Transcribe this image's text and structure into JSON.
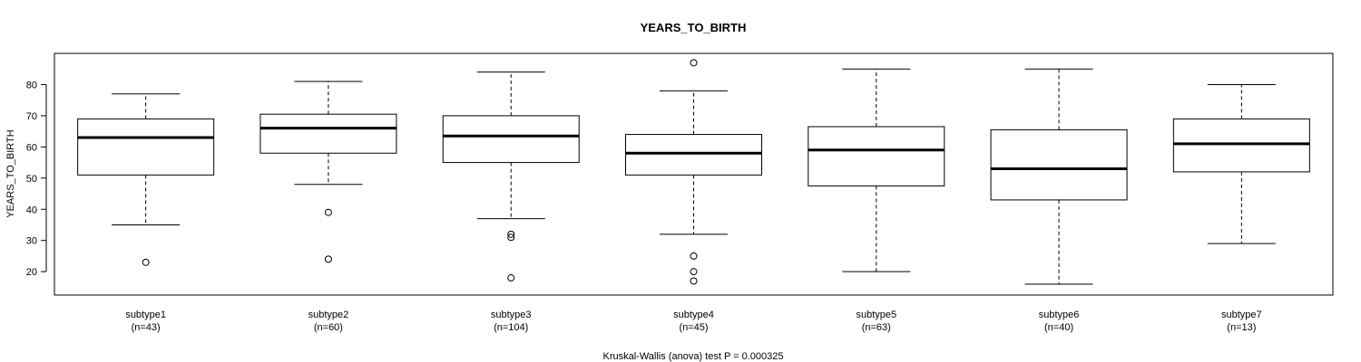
{
  "chart_data": {
    "type": "boxplot",
    "title": "YEARS_TO_BIRTH",
    "ylabel": "YEARS_TO_BIRTH",
    "footnote": "Kruskal-Wallis (anova) test P = 0.000325",
    "ylim": [
      12.5,
      90
    ],
    "yticks": [
      20,
      30,
      40,
      50,
      60,
      70,
      80
    ],
    "groups": [
      {
        "name": "subtype1",
        "n_label": "(n=43)",
        "lower_whisker": 35,
        "q1": 51,
        "median": 63,
        "q3": 69,
        "upper_whisker": 77,
        "outliers": [
          23
        ]
      },
      {
        "name": "subtype2",
        "n_label": "(n=60)",
        "lower_whisker": 48,
        "q1": 58,
        "median": 66,
        "q3": 70.5,
        "upper_whisker": 81,
        "outliers": [
          39,
          24
        ]
      },
      {
        "name": "subtype3",
        "n_label": "(n=104)",
        "lower_whisker": 37,
        "q1": 55,
        "median": 63.5,
        "q3": 70,
        "upper_whisker": 84,
        "outliers": [
          32,
          31,
          18
        ]
      },
      {
        "name": "subtype4",
        "n_label": "(n=45)",
        "lower_whisker": 32,
        "q1": 51,
        "median": 58,
        "q3": 64,
        "upper_whisker": 78,
        "outliers": [
          87,
          25,
          20,
          17
        ]
      },
      {
        "name": "subtype5",
        "n_label": "(n=63)",
        "lower_whisker": 20,
        "q1": 47.5,
        "median": 59,
        "q3": 66.5,
        "upper_whisker": 85,
        "outliers": []
      },
      {
        "name": "subtype6",
        "n_label": "(n=40)",
        "lower_whisker": 16,
        "q1": 43,
        "median": 53,
        "q3": 65.5,
        "upper_whisker": 85,
        "outliers": []
      },
      {
        "name": "subtype7",
        "n_label": "(n=13)",
        "lower_whisker": 29,
        "q1": 52,
        "median": 61,
        "q3": 69,
        "upper_whisker": 80,
        "outliers": []
      }
    ]
  }
}
